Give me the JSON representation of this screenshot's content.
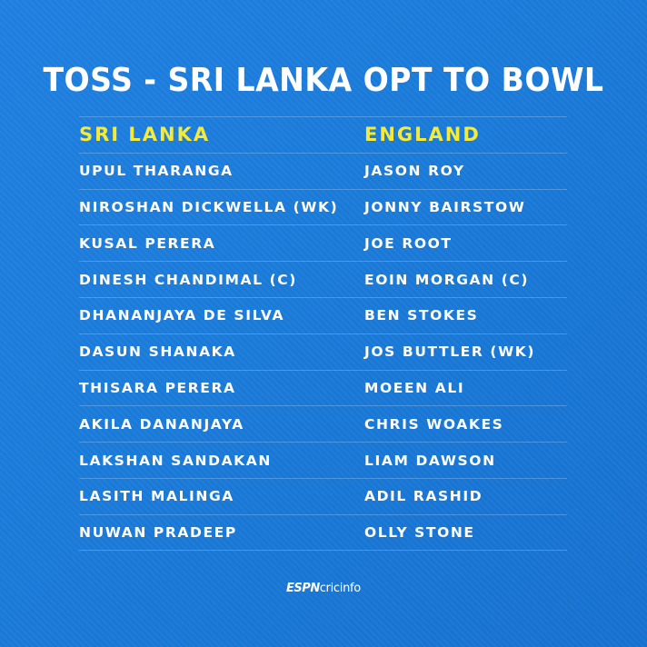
{
  "title": "TOSS - SRI LANKA OPT TO BOWL",
  "teams": {
    "left": "SRI LANKA",
    "right": "ENGLAND"
  },
  "players": [
    [
      "UPUL THARANGA",
      "JASON ROY"
    ],
    [
      "NIROSHAN DICKWELLA (WK)",
      "JONNY BAIRSTOW"
    ],
    [
      "KUSAL PERERA",
      "JOE ROOT"
    ],
    [
      "DINESH CHANDIMAL (C)",
      "EOIN MORGAN (C)"
    ],
    [
      "DHANANJAYA DE SILVA",
      "BEN STOKES"
    ],
    [
      "DASUN SHANAKA",
      "JOS BUTTLER (WK)"
    ],
    [
      "THISARA PERERA",
      "MOEEN ALI"
    ],
    [
      "AKILA DANANJAYA",
      "CHRIS WOAKES"
    ],
    [
      "LAKSHAN SANDAKAN",
      "LIAM DAWSON"
    ],
    [
      "LASITH MALINGA",
      "ADIL RASHID"
    ],
    [
      "NUWAN PRADEEP",
      "OLLY STONE"
    ]
  ],
  "logo": {
    "espn": "ESPN",
    "cricinfo": "cricinfo"
  },
  "colors": {
    "background": "#1a7ad8",
    "header_yellow": "#f5e93a",
    "text": "#ffffff"
  }
}
